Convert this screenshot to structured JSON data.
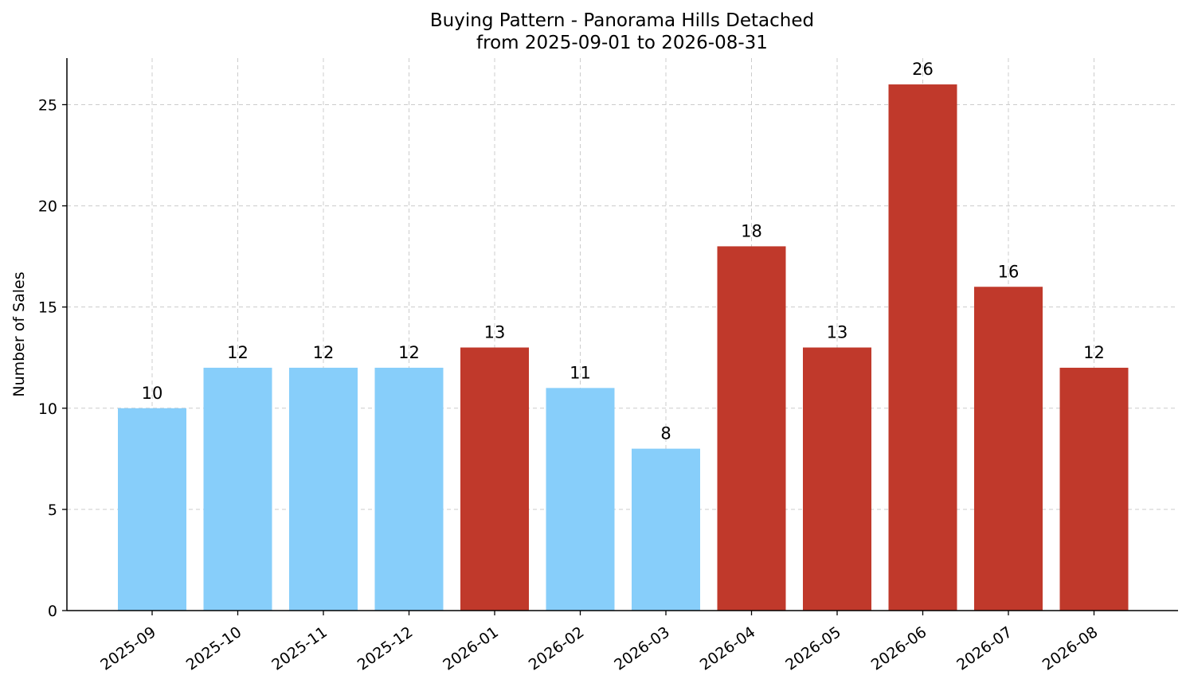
{
  "chart_data": {
    "type": "bar",
    "title": "Buying Pattern - Panorama Hills Detached",
    "subtitle": "from 2025-09-01 to 2026-08-31",
    "xlabel": "",
    "ylabel": "Number of Sales",
    "categories": [
      "2025-09",
      "2025-10",
      "2025-11",
      "2025-12",
      "2026-01",
      "2026-02",
      "2026-03",
      "2026-04",
      "2026-05",
      "2026-06",
      "2026-07",
      "2026-08"
    ],
    "values": [
      10,
      12,
      12,
      12,
      13,
      11,
      8,
      18,
      13,
      26,
      16,
      12
    ],
    "highlighted": [
      false,
      false,
      false,
      false,
      true,
      false,
      false,
      true,
      true,
      true,
      true,
      true
    ],
    "ylim": [
      0,
      27.3
    ],
    "yticks": [
      0,
      5,
      10,
      15,
      20,
      25
    ],
    "grid": true,
    "colors": {
      "normal": "#87CEFA",
      "highlight": "#C0392B"
    }
  }
}
